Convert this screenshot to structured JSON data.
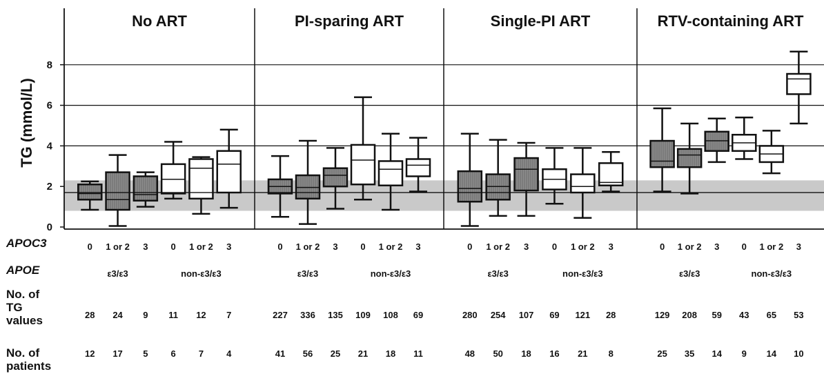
{
  "chart_data": {
    "type": "box",
    "ylabel": "TG (mmol/L)",
    "yticks": [
      0,
      2,
      4,
      6,
      8
    ],
    "ylim": [
      0,
      10
    ],
    "gridlines": [
      4,
      6,
      8
    ],
    "reference_line": 1.7,
    "reference_band": [
      0.8,
      2.3
    ],
    "panels": [
      {
        "title": "No ART",
        "boxes": [
          {
            "apoc3": "0",
            "apoe": "ε3/ε3",
            "fill": "grey",
            "whisker_low": 0.85,
            "q1": 1.35,
            "median": 1.65,
            "q3": 2.1,
            "whisker_high": 2.25,
            "tg_values": "28",
            "patients": "12"
          },
          {
            "apoc3": "1 or 2",
            "apoe": "ε3/ε3",
            "fill": "grey",
            "whisker_low": 0.05,
            "q1": 0.85,
            "median": 1.35,
            "q3": 2.7,
            "whisker_high": 3.55,
            "tg_values": "24",
            "patients": "17"
          },
          {
            "apoc3": "3",
            "apoe": "ε3/ε3",
            "fill": "grey",
            "whisker_low": 1.0,
            "q1": 1.3,
            "median": 1.6,
            "q3": 2.5,
            "whisker_high": 2.7,
            "tg_values": "9",
            "patients": "5"
          },
          {
            "apoc3": "0",
            "apoe": "non-ε3/ε3",
            "fill": "white",
            "whisker_low": 1.4,
            "q1": 1.65,
            "median": 2.35,
            "q3": 3.1,
            "whisker_high": 4.2,
            "tg_values": "11",
            "patients": "6"
          },
          {
            "apoc3": "1 or 2",
            "apoe": "non-ε3/ε3",
            "fill": "white",
            "whisker_low": 0.65,
            "q1": 1.4,
            "median": 2.9,
            "q3": 3.35,
            "whisker_high": 3.45,
            "tg_values": "12",
            "patients": "7"
          },
          {
            "apoc3": "3",
            "apoe": "non-ε3/ε3",
            "fill": "white",
            "whisker_low": 0.95,
            "q1": 1.7,
            "median": 3.1,
            "q3": 3.75,
            "whisker_high": 4.8,
            "tg_values": "7",
            "patients": "4"
          }
        ]
      },
      {
        "title": "PI-sparing ART",
        "boxes": [
          {
            "apoc3": "0",
            "apoe": "ε3/ε3",
            "fill": "grey",
            "whisker_low": 0.5,
            "q1": 1.65,
            "median": 2.0,
            "q3": 2.35,
            "whisker_high": 3.5,
            "tg_values": "227",
            "patients": "41"
          },
          {
            "apoc3": "1 or 2",
            "apoe": "ε3/ε3",
            "fill": "grey",
            "whisker_low": 0.15,
            "q1": 1.4,
            "median": 1.95,
            "q3": 2.55,
            "whisker_high": 4.25,
            "tg_values": "336",
            "patients": "56"
          },
          {
            "apoc3": "3",
            "apoe": "ε3/ε3",
            "fill": "grey",
            "whisker_low": 0.9,
            "q1": 2.0,
            "median": 2.55,
            "q3": 2.9,
            "whisker_high": 3.9,
            "tg_values": "135",
            "patients": "25"
          },
          {
            "apoc3": "0",
            "apoe": "non-ε3/ε3",
            "fill": "white",
            "whisker_low": 1.35,
            "q1": 2.1,
            "median": 3.3,
            "q3": 4.05,
            "whisker_high": 6.4,
            "tg_values": "109",
            "patients": "21"
          },
          {
            "apoc3": "1 or 2",
            "apoe": "non-ε3/ε3",
            "fill": "white",
            "whisker_low": 0.85,
            "q1": 2.05,
            "median": 2.85,
            "q3": 3.25,
            "whisker_high": 4.6,
            "tg_values": "108",
            "patients": "18"
          },
          {
            "apoc3": "3",
            "apoe": "non-ε3/ε3",
            "fill": "white",
            "whisker_low": 1.75,
            "q1": 2.5,
            "median": 3.05,
            "q3": 3.35,
            "whisker_high": 4.4,
            "tg_values": "69",
            "patients": "11"
          }
        ]
      },
      {
        "title": "Single-PI ART",
        "boxes": [
          {
            "apoc3": "0",
            "apoe": "ε3/ε3",
            "fill": "grey",
            "whisker_low": 0.05,
            "q1": 1.25,
            "median": 1.9,
            "q3": 2.75,
            "whisker_high": 4.6,
            "tg_values": "280",
            "patients": "48"
          },
          {
            "apoc3": "1 or 2",
            "apoe": "ε3/ε3",
            "fill": "grey",
            "whisker_low": 0.55,
            "q1": 1.35,
            "median": 2.0,
            "q3": 2.6,
            "whisker_high": 4.3,
            "tg_values": "254",
            "patients": "50"
          },
          {
            "apoc3": "3",
            "apoe": "ε3/ε3",
            "fill": "grey",
            "whisker_low": 0.55,
            "q1": 1.8,
            "median": 2.85,
            "q3": 3.4,
            "whisker_high": 4.15,
            "tg_values": "107",
            "patients": "18"
          },
          {
            "apoc3": "0",
            "apoe": "non-ε3/ε3",
            "fill": "white",
            "whisker_low": 1.15,
            "q1": 1.85,
            "median": 2.35,
            "q3": 2.85,
            "whisker_high": 3.9,
            "tg_values": "69",
            "patients": "16"
          },
          {
            "apoc3": "1 or 2",
            "apoe": "non-ε3/ε3",
            "fill": "white",
            "whisker_low": 0.45,
            "q1": 1.7,
            "median": 2.0,
            "q3": 2.6,
            "whisker_high": 3.9,
            "tg_values": "121",
            "patients": "21"
          },
          {
            "apoc3": "3",
            "apoe": "non-ε3/ε3",
            "fill": "white",
            "whisker_low": 1.75,
            "q1": 2.05,
            "median": 2.2,
            "q3": 3.15,
            "whisker_high": 3.7,
            "tg_values": "28",
            "patients": "8"
          }
        ]
      },
      {
        "title": "RTV-containing ART",
        "boxes": [
          {
            "apoc3": "0",
            "apoe": "ε3/ε3",
            "fill": "grey",
            "whisker_low": 1.75,
            "q1": 2.95,
            "median": 3.25,
            "q3": 4.25,
            "whisker_high": 5.85,
            "tg_values": "129",
            "patients": "25"
          },
          {
            "apoc3": "1 or 2",
            "apoe": "ε3/ε3",
            "fill": "grey",
            "whisker_low": 1.65,
            "q1": 2.95,
            "median": 3.55,
            "q3": 3.85,
            "whisker_high": 5.1,
            "tg_values": "208",
            "patients": "35"
          },
          {
            "apoc3": "3",
            "apoe": "ε3/ε3",
            "fill": "grey",
            "whisker_low": 3.2,
            "q1": 3.75,
            "median": 4.25,
            "q3": 4.7,
            "whisker_high": 5.35,
            "tg_values": "59",
            "patients": "14"
          },
          {
            "apoc3": "0",
            "apoe": "non-ε3/ε3",
            "fill": "white",
            "whisker_low": 3.35,
            "q1": 3.75,
            "median": 4.15,
            "q3": 4.55,
            "whisker_high": 5.4,
            "tg_values": "43",
            "patients": "9"
          },
          {
            "apoc3": "1 or 2",
            "apoe": "non-ε3/ε3",
            "fill": "white",
            "whisker_low": 2.65,
            "q1": 3.2,
            "median": 3.6,
            "q3": 4.0,
            "whisker_high": 4.75,
            "tg_values": "65",
            "patients": "14"
          },
          {
            "apoc3": "3",
            "apoe": "non-ε3/ε3",
            "fill": "white",
            "whisker_low": 5.1,
            "q1": 6.55,
            "median": 7.3,
            "q3": 7.55,
            "whisker_high": 8.65,
            "tg_values": "53",
            "patients": "10"
          }
        ]
      }
    ],
    "row_labels": {
      "apoc3": "APOC3",
      "apoe": "APOE",
      "tg_values": [
        "No. of",
        "TG",
        "values"
      ],
      "patients": [
        "No. of",
        "patients"
      ]
    },
    "apoe_groups": [
      "ε3/ε3",
      "non-ε3/ε3"
    ]
  }
}
